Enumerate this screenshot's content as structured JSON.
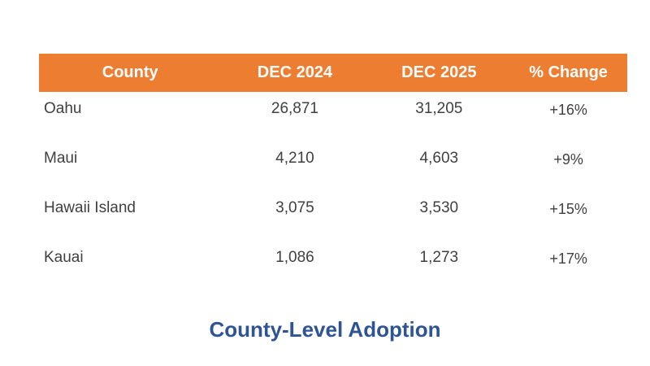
{
  "caption": "County-Level Adoption",
  "colors": {
    "header_bg": "#ED7D31",
    "header_text": "#FFFFFF",
    "body_text": "#404040",
    "caption_text": "#2F5496",
    "background": "#FFFFFF"
  },
  "chart_data": {
    "type": "table",
    "title": "County-Level Adoption",
    "columns": [
      "County",
      "DEC 2024",
      "DEC 2025",
      "% Change"
    ],
    "rows": [
      [
        "Oahu",
        "26,871",
        "31,205",
        "+16%"
      ],
      [
        "Maui",
        "4,210",
        "4,603",
        "+9%"
      ],
      [
        "Hawaii Island",
        "3,075",
        "3,530",
        "+15%"
      ],
      [
        "Kauai",
        "1,086",
        "1,273",
        "+17%"
      ]
    ],
    "categories": [
      "Oahu",
      "Maui",
      "Hawaii Island",
      "Kauai"
    ],
    "series": [
      {
        "name": "DEC 2024",
        "values": [
          26871,
          4210,
          3075,
          1086
        ]
      },
      {
        "name": "DEC 2025",
        "values": [
          31205,
          4603,
          3530,
          1273
        ]
      },
      {
        "name": "% Change",
        "values": [
          "+16%",
          "+9%",
          "+15%",
          "+17%"
        ]
      }
    ],
    "legend_position": "none",
    "grid": false
  }
}
